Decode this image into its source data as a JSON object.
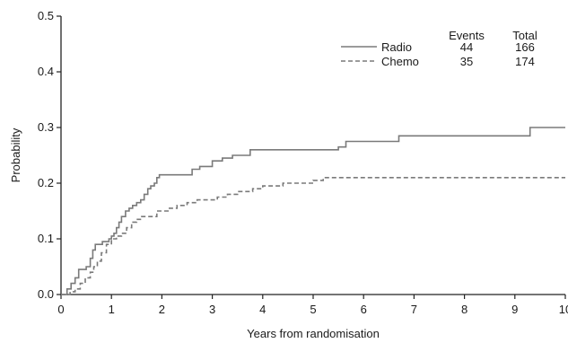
{
  "chart_data": {
    "type": "line",
    "xlabel": "Years from randomisation",
    "ylabel": "Probability",
    "xlim": [
      0,
      10
    ],
    "ylim": [
      0,
      0.5
    ],
    "x_ticks": [
      0,
      1,
      2,
      3,
      4,
      5,
      6,
      7,
      8,
      9,
      10
    ],
    "x_tick_labels": [
      "0",
      "1",
      "2",
      "3",
      "4",
      "5",
      "6",
      "7",
      "8",
      "9",
      "10"
    ],
    "y_ticks": [
      0,
      0.1,
      0.2,
      0.3,
      0.4,
      0.5
    ],
    "y_tick_labels": [
      "0.0",
      "0.1",
      "0.2",
      "0.3",
      "0.4",
      "0.5"
    ],
    "grid": false,
    "legend_position": "top-right",
    "legend_headers": {
      "events": "Events",
      "total": "Total"
    },
    "series": [
      {
        "name": "Radio",
        "events": "44",
        "total": "166",
        "color": "#7a7a7a",
        "style": "solid",
        "x": [
          0,
          0.12,
          0.2,
          0.28,
          0.35,
          0.42,
          0.5,
          0.58,
          0.63,
          0.68,
          0.75,
          0.82,
          0.88,
          0.95,
          1.0,
          1.05,
          1.1,
          1.15,
          1.2,
          1.28,
          1.35,
          1.42,
          1.5,
          1.58,
          1.65,
          1.72,
          1.78,
          1.85,
          1.9,
          1.95,
          2.0,
          2.6,
          2.75,
          3.0,
          3.2,
          3.4,
          3.75,
          5.5,
          5.65,
          6.05,
          6.7,
          9.3,
          10.0
        ],
        "y": [
          0,
          0.01,
          0.02,
          0.03,
          0.045,
          0.045,
          0.05,
          0.065,
          0.08,
          0.09,
          0.09,
          0.095,
          0.095,
          0.1,
          0.105,
          0.11,
          0.12,
          0.13,
          0.14,
          0.15,
          0.155,
          0.16,
          0.165,
          0.17,
          0.18,
          0.19,
          0.195,
          0.2,
          0.21,
          0.215,
          0.215,
          0.225,
          0.23,
          0.24,
          0.245,
          0.25,
          0.26,
          0.265,
          0.275,
          0.275,
          0.285,
          0.3,
          0.3
        ]
      },
      {
        "name": "Chemo",
        "events": "35",
        "total": "174",
        "color": "#7a7a7a",
        "style": "dashed",
        "x": [
          0,
          0.18,
          0.28,
          0.38,
          0.48,
          0.58,
          0.65,
          0.72,
          0.8,
          0.9,
          1.0,
          1.1,
          1.2,
          1.3,
          1.4,
          1.5,
          1.6,
          1.9,
          2.15,
          2.3,
          2.5,
          2.7,
          3.1,
          3.3,
          3.5,
          3.8,
          4.0,
          4.4,
          4.7,
          5.0,
          5.2,
          10.0
        ],
        "y": [
          0,
          0.005,
          0.01,
          0.02,
          0.03,
          0.04,
          0.05,
          0.06,
          0.075,
          0.09,
          0.1,
          0.105,
          0.11,
          0.12,
          0.13,
          0.135,
          0.14,
          0.15,
          0.155,
          0.16,
          0.165,
          0.17,
          0.175,
          0.18,
          0.185,
          0.19,
          0.195,
          0.2,
          0.2,
          0.205,
          0.21,
          0.21
        ]
      }
    ]
  }
}
